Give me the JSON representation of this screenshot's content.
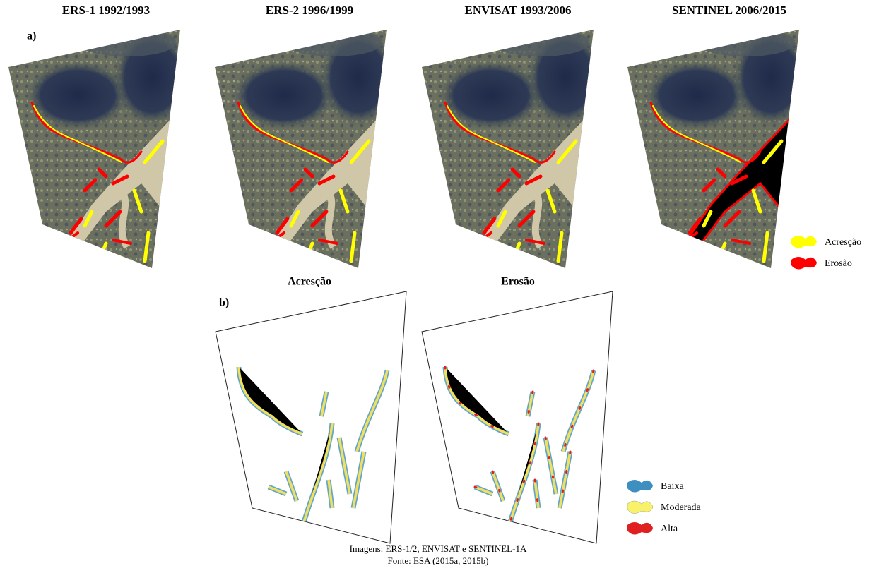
{
  "panel_a": {
    "label": "a)",
    "panels": [
      {
        "title": "ERS-1 1992/1993"
      },
      {
        "title": "ERS-2 1996/1999"
      },
      {
        "title": "ENVISAT 1993/2006"
      },
      {
        "title": "SENTINEL 2006/2015"
      }
    ],
    "legend": [
      {
        "label": "Acresção"
      },
      {
        "label": "Erosão"
      }
    ]
  },
  "panel_b": {
    "label": "b)",
    "panels": [
      {
        "title": "Acresção"
      },
      {
        "title": "Erosão"
      }
    ],
    "legend": [
      {
        "label": "Baixa"
      },
      {
        "label": "Moderada"
      },
      {
        "label": "Alta"
      }
    ]
  },
  "footer": {
    "lines": [
      "Imagens: ERS-1/2, ENVISAT e SENTINEL-1A",
      "Fonte: ESA (2015a, 2015b)"
    ]
  }
}
